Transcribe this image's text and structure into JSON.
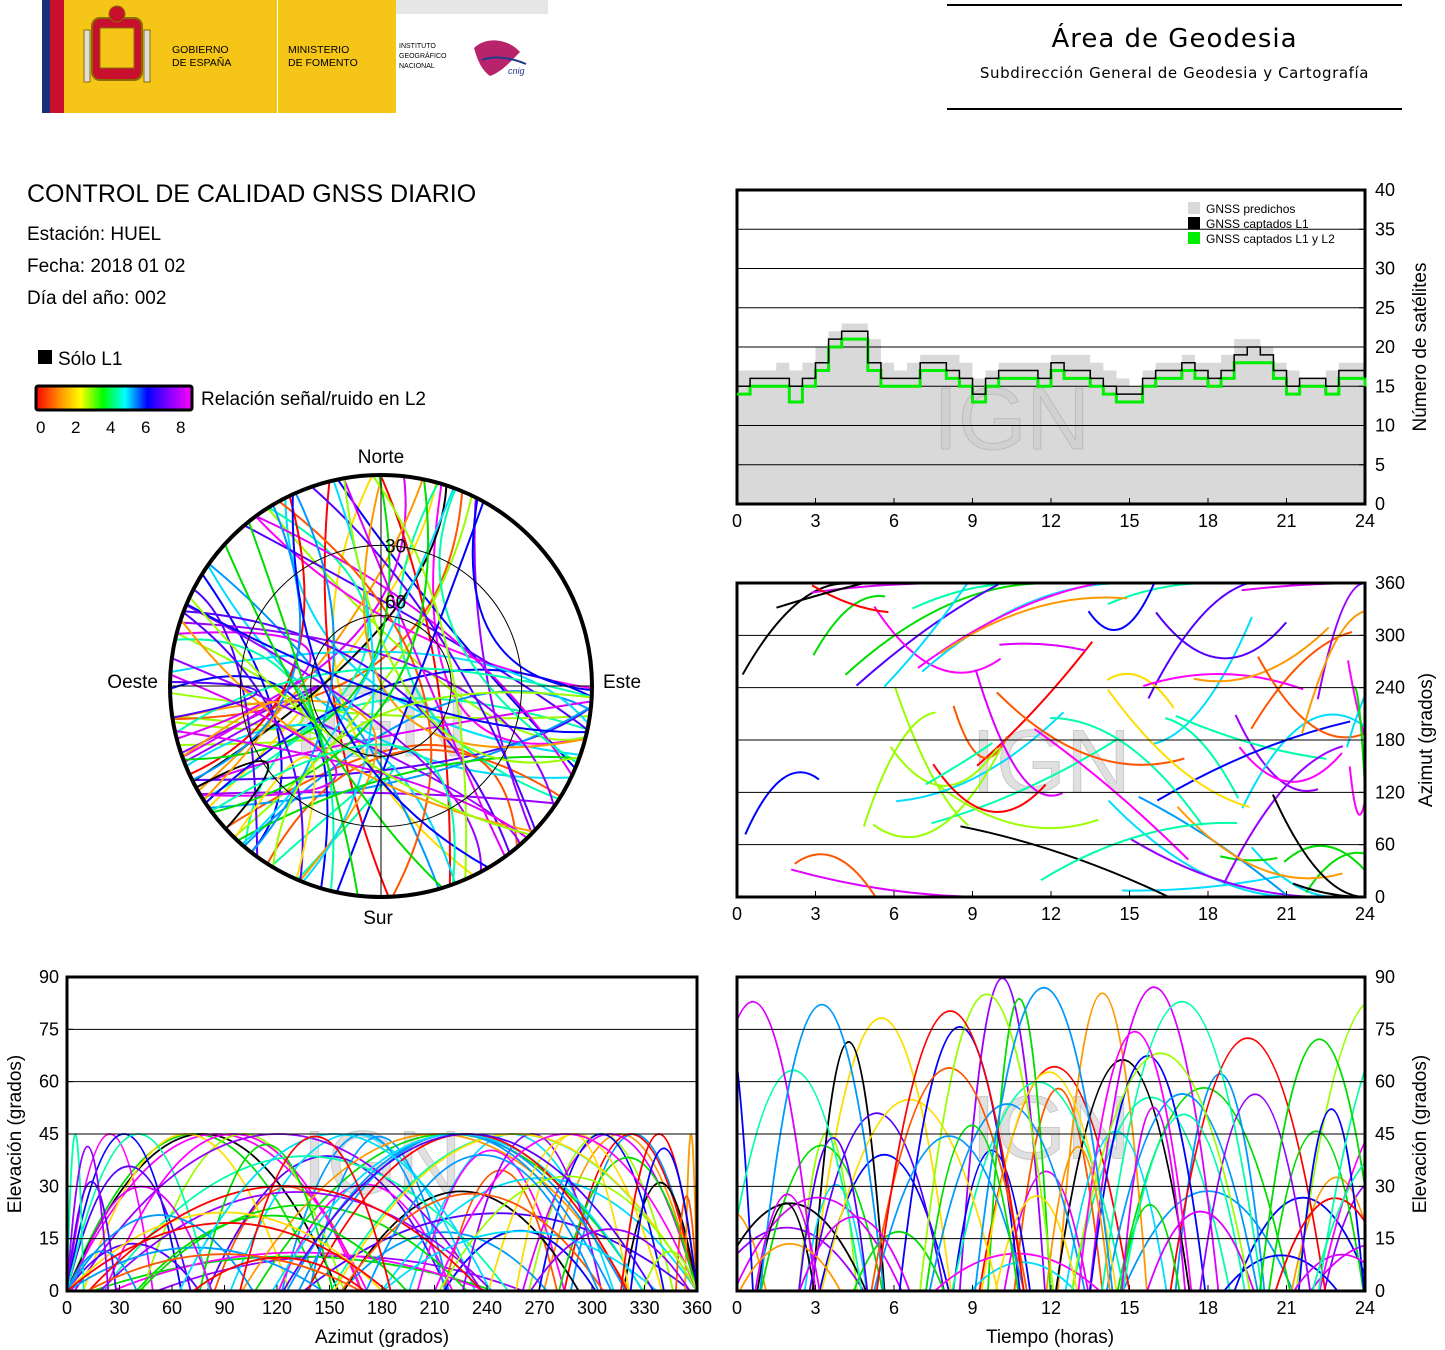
{
  "header": {
    "gov_line1": "GOBIERNO",
    "gov_line2": "DE ESPAÑA",
    "min_line1": "MINISTERIO",
    "min_line2": "DE FOMENTO",
    "ign_line1": "INSTITUTO",
    "ign_line2": "GEOGRÁFICO",
    "ign_line3": "NACIONAL",
    "cnig": "cnig",
    "area_title": "Área de Geodesia",
    "area_subtitle": "Subdirección General de Geodesia y Cartografía"
  },
  "report": {
    "title": "CONTROL DE CALIDAD GNSS DIARIO",
    "station": "Estación: HUEL",
    "date": "Fecha: 2018 01 02",
    "doy": "Día del año: 002"
  },
  "legend": {
    "l1_only": "Sólo L1",
    "snr_label": "Relación señal/ruido en L2",
    "snr_ticks": [
      "0",
      "2",
      "4",
      "6",
      "8"
    ],
    "snr_colors": [
      "#ff0000",
      "#ff8800",
      "#ffff00",
      "#00ff00",
      "#00ffff",
      "#0000ff",
      "#8800ff",
      "#ff00ff"
    ],
    "l1_color": "#000000"
  },
  "watermark": "IGN",
  "chart_data": [
    {
      "type": "line",
      "id": "satellites",
      "ylabel": "Número de satélites",
      "x_ticks": [
        "0",
        "3",
        "6",
        "9",
        "12",
        "15",
        "18",
        "21",
        "24"
      ],
      "y_ticks": [
        "0",
        "5",
        "10",
        "15",
        "20",
        "25",
        "30",
        "35",
        "40"
      ],
      "xlim": [
        0,
        24
      ],
      "ylim": [
        0,
        40
      ],
      "grid": true,
      "legend_position": "top-right",
      "x": [
        0,
        0.5,
        1,
        1.5,
        2,
        2.5,
        3,
        3.5,
        4,
        4.5,
        5,
        5.5,
        6,
        6.5,
        7,
        7.5,
        8,
        8.5,
        9,
        9.5,
        10,
        10.5,
        11,
        11.5,
        12,
        12.5,
        13,
        13.5,
        14,
        14.5,
        15,
        15.5,
        16,
        16.5,
        17,
        17.5,
        18,
        18.5,
        19,
        19.5,
        20,
        20.5,
        21,
        21.5,
        22,
        22.5,
        23,
        23.5,
        24
      ],
      "series": [
        {
          "name": "GNSS predichos",
          "color": "#d9d9d9",
          "fill": true,
          "values": [
            17,
            17,
            17,
            18,
            17,
            18,
            20,
            22,
            23,
            23,
            21,
            18,
            17,
            18,
            19,
            19,
            19,
            18,
            16,
            17,
            18,
            18,
            18,
            18,
            19,
            19,
            19,
            18,
            17,
            16,
            15,
            17,
            18,
            18,
            19,
            18,
            18,
            19,
            21,
            21,
            20,
            18,
            17,
            16,
            16,
            17,
            18,
            18,
            17
          ]
        },
        {
          "name": "GNSS captados L1",
          "color": "#000000",
          "values": [
            15,
            16,
            16,
            16,
            15,
            16,
            18,
            21,
            22,
            22,
            18,
            16,
            16,
            16,
            18,
            18,
            17,
            16,
            14,
            16,
            17,
            17,
            17,
            16,
            18,
            17,
            17,
            16,
            15,
            14,
            14,
            16,
            17,
            17,
            18,
            17,
            16,
            17,
            19,
            20,
            19,
            17,
            15,
            16,
            16,
            15,
            17,
            17,
            16
          ]
        },
        {
          "name": "GNSS captados L1 y L2",
          "color": "#00ee00",
          "values": [
            14,
            15,
            15,
            15,
            13,
            15,
            17,
            20,
            21,
            21,
            17,
            15,
            15,
            15,
            17,
            17,
            16,
            15,
            13,
            15,
            16,
            16,
            16,
            15,
            17,
            16,
            16,
            15,
            14,
            13,
            13,
            15,
            16,
            16,
            17,
            16,
            15,
            16,
            18,
            18,
            18,
            16,
            14,
            15,
            15,
            14,
            16,
            16,
            15
          ]
        }
      ]
    },
    {
      "type": "scatter",
      "id": "azimuth_time",
      "ylabel": "Azimut (grados)",
      "x_ticks": [
        "0",
        "3",
        "6",
        "9",
        "12",
        "15",
        "18",
        "21",
        "24"
      ],
      "y_ticks": [
        "0",
        "60",
        "120",
        "180",
        "240",
        "300",
        "360"
      ],
      "xlim": [
        0,
        24
      ],
      "ylim": [
        0,
        360
      ],
      "grid": true
    },
    {
      "type": "scatter",
      "id": "elevation_azimuth",
      "xlabel": "Azimut (grados)",
      "ylabel": "Elevación (grados)",
      "x_ticks": [
        "0",
        "30",
        "60",
        "90",
        "120",
        "150",
        "180",
        "210",
        "240",
        "270",
        "300",
        "330",
        "360"
      ],
      "y_ticks": [
        "0",
        "15",
        "30",
        "45",
        "60",
        "75",
        "90"
      ],
      "xlim": [
        0,
        360
      ],
      "ylim": [
        0,
        90
      ],
      "grid": true
    },
    {
      "type": "scatter",
      "id": "elevation_time",
      "xlabel": "Tiempo (horas)",
      "ylabel": "Elevación (grados)",
      "x_ticks": [
        "0",
        "3",
        "6",
        "9",
        "12",
        "15",
        "18",
        "21",
        "24"
      ],
      "y_ticks": [
        "0",
        "15",
        "30",
        "45",
        "60",
        "75",
        "90"
      ],
      "xlim": [
        0,
        24
      ],
      "ylim": [
        0,
        90
      ],
      "grid": true
    },
    {
      "type": "scatter",
      "id": "skyplot",
      "directions": {
        "north": "Norte",
        "south": "Sur",
        "east": "Este",
        "west": "Oeste"
      },
      "ring_labels": [
        "30",
        "60"
      ]
    }
  ]
}
